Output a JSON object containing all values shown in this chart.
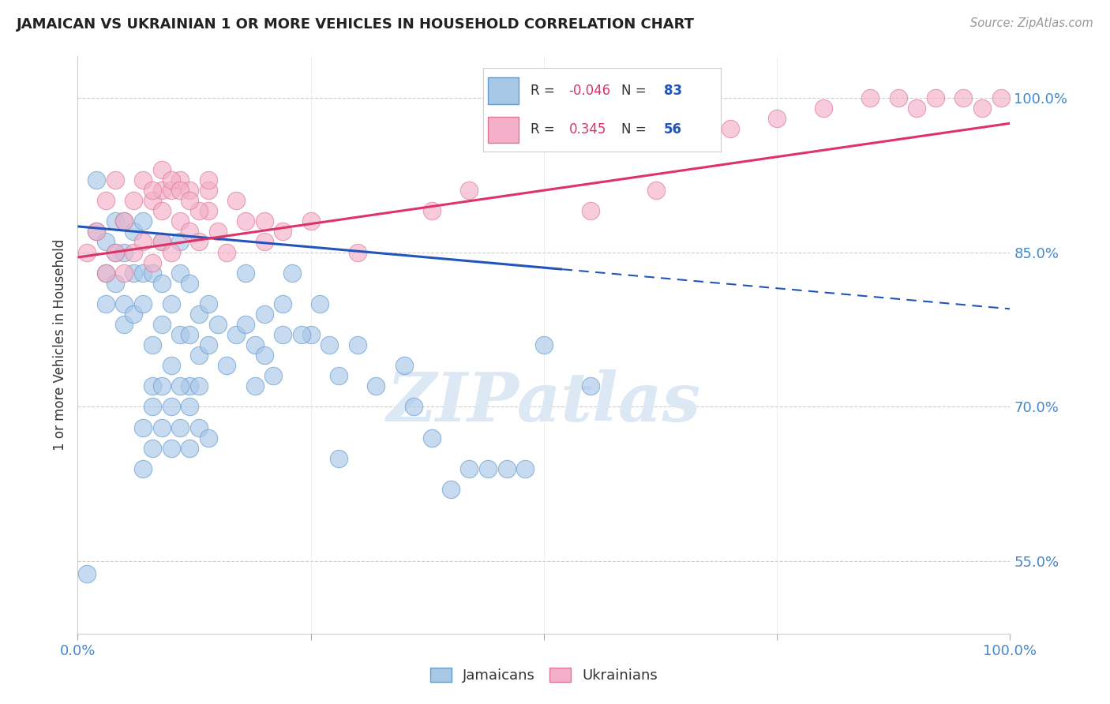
{
  "title": "JAMAICAN VS UKRAINIAN 1 OR MORE VEHICLES IN HOUSEHOLD CORRELATION CHART",
  "source": "Source: ZipAtlas.com",
  "ylabel": "1 or more Vehicles in Household",
  "ytick_labels": [
    "55.0%",
    "70.0%",
    "85.0%",
    "100.0%"
  ],
  "ytick_values": [
    0.55,
    0.7,
    0.85,
    1.0
  ],
  "xlim": [
    0.0,
    1.0
  ],
  "ylim": [
    0.48,
    1.04
  ],
  "blue_R": "-0.046",
  "blue_N": "83",
  "pink_R": "0.345",
  "pink_N": "56",
  "blue_scatter_color": "#a8c8e8",
  "pink_scatter_color": "#f4b0c8",
  "blue_edge_color": "#6699cc",
  "pink_edge_color": "#dd7799",
  "blue_line_color": "#2255bb",
  "pink_line_color": "#dd3366",
  "blue_points_x": [
    0.01,
    0.02,
    0.02,
    0.03,
    0.03,
    0.03,
    0.04,
    0.04,
    0.04,
    0.05,
    0.05,
    0.05,
    0.05,
    0.06,
    0.06,
    0.06,
    0.07,
    0.07,
    0.07,
    0.08,
    0.08,
    0.08,
    0.09,
    0.09,
    0.09,
    0.1,
    0.1,
    0.11,
    0.11,
    0.11,
    0.12,
    0.12,
    0.12,
    0.13,
    0.13,
    0.14,
    0.14,
    0.15,
    0.16,
    0.17,
    0.18,
    0.18,
    0.19,
    0.19,
    0.2,
    0.2,
    0.21,
    0.22,
    0.22,
    0.23,
    0.25,
    0.26,
    0.27,
    0.28,
    0.3,
    0.32,
    0.35,
    0.36,
    0.4,
    0.42,
    0.44,
    0.46,
    0.48,
    0.5,
    0.55,
    0.38,
    0.28,
    0.24,
    0.07,
    0.07,
    0.08,
    0.08,
    0.09,
    0.09,
    0.1,
    0.1,
    0.11,
    0.11,
    0.12,
    0.12,
    0.13,
    0.13,
    0.14
  ],
  "blue_points_y": [
    0.538,
    0.87,
    0.92,
    0.8,
    0.83,
    0.86,
    0.82,
    0.85,
    0.88,
    0.78,
    0.8,
    0.85,
    0.88,
    0.79,
    0.83,
    0.87,
    0.8,
    0.83,
    0.88,
    0.72,
    0.76,
    0.83,
    0.78,
    0.82,
    0.86,
    0.74,
    0.8,
    0.83,
    0.86,
    0.77,
    0.72,
    0.77,
    0.82,
    0.75,
    0.79,
    0.76,
    0.8,
    0.78,
    0.74,
    0.77,
    0.83,
    0.78,
    0.72,
    0.76,
    0.75,
    0.79,
    0.73,
    0.77,
    0.8,
    0.83,
    0.77,
    0.8,
    0.76,
    0.73,
    0.76,
    0.72,
    0.74,
    0.7,
    0.62,
    0.64,
    0.64,
    0.64,
    0.64,
    0.76,
    0.72,
    0.67,
    0.65,
    0.77,
    0.64,
    0.68,
    0.66,
    0.7,
    0.68,
    0.72,
    0.66,
    0.7,
    0.68,
    0.72,
    0.66,
    0.7,
    0.68,
    0.72,
    0.67
  ],
  "pink_points_x": [
    0.01,
    0.02,
    0.03,
    0.03,
    0.04,
    0.04,
    0.05,
    0.05,
    0.06,
    0.06,
    0.07,
    0.07,
    0.08,
    0.08,
    0.09,
    0.09,
    0.1,
    0.11,
    0.12,
    0.13,
    0.14,
    0.15,
    0.16,
    0.17,
    0.18,
    0.2,
    0.22,
    0.25,
    0.3,
    0.38,
    0.42,
    0.55,
    0.62,
    0.7,
    0.75,
    0.8,
    0.85,
    0.88,
    0.9,
    0.92,
    0.95,
    0.97,
    0.99,
    0.14,
    0.2,
    0.09,
    0.1,
    0.11,
    0.12,
    0.13,
    0.14,
    0.08,
    0.09,
    0.1,
    0.11,
    0.12
  ],
  "pink_points_y": [
    0.85,
    0.87,
    0.83,
    0.9,
    0.85,
    0.92,
    0.83,
    0.88,
    0.85,
    0.9,
    0.86,
    0.92,
    0.84,
    0.9,
    0.86,
    0.91,
    0.85,
    0.88,
    0.87,
    0.86,
    0.89,
    0.87,
    0.85,
    0.9,
    0.88,
    0.86,
    0.87,
    0.88,
    0.85,
    0.89,
    0.91,
    0.89,
    0.91,
    0.97,
    0.98,
    0.99,
    1.0,
    1.0,
    0.99,
    1.0,
    1.0,
    0.99,
    1.0,
    0.91,
    0.88,
    0.93,
    0.91,
    0.92,
    0.91,
    0.89,
    0.92,
    0.91,
    0.89,
    0.92,
    0.91,
    0.9
  ],
  "xtick_positions": [
    0.0,
    0.25,
    0.5,
    0.75,
    1.0
  ],
  "watermark_text": "ZIPatlas",
  "watermark_color": "#dce8f4",
  "background_color": "#ffffff",
  "grid_color": "#cccccc",
  "spine_color": "#cccccc",
  "tick_label_color": "#4488cc",
  "text_color": "#333333",
  "source_color": "#999999"
}
